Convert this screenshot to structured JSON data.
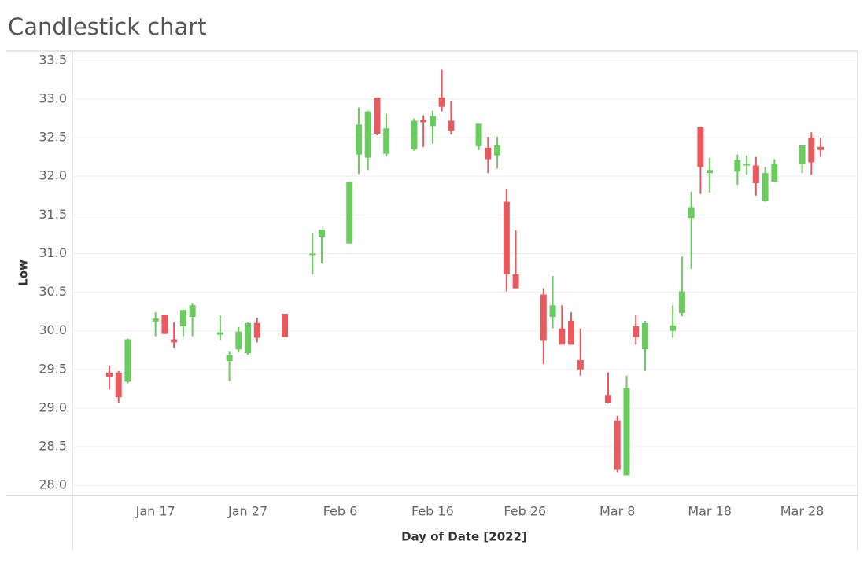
{
  "chart_data": {
    "type": "candlestick",
    "title": "Candlestick chart",
    "x_label": "Day of Date [2022]",
    "y_label": "Low",
    "dates": [
      "2022-01-12",
      "2022-01-13",
      "2022-01-14",
      "2022-01-17",
      "2022-01-18",
      "2022-01-19",
      "2022-01-20",
      "2022-01-21",
      "2022-01-24",
      "2022-01-25",
      "2022-01-26",
      "2022-01-27",
      "2022-01-28",
      "2022-01-31",
      "2022-02-03",
      "2022-02-04",
      "2022-02-07",
      "2022-02-08",
      "2022-02-09",
      "2022-02-10",
      "2022-02-11",
      "2022-02-14",
      "2022-02-15",
      "2022-02-16",
      "2022-02-17",
      "2022-02-18",
      "2022-02-21",
      "2022-02-22",
      "2022-02-23",
      "2022-02-24",
      "2022-02-25",
      "2022-02-28",
      "2022-03-01",
      "2022-03-02",
      "2022-03-03",
      "2022-03-04",
      "2022-03-07",
      "2022-03-08",
      "2022-03-09",
      "2022-03-10",
      "2022-03-11",
      "2022-03-14",
      "2022-03-15",
      "2022-03-16",
      "2022-03-17",
      "2022-03-18",
      "2022-03-21",
      "2022-03-22",
      "2022-03-23",
      "2022-03-24",
      "2022-03-25",
      "2022-03-28",
      "2022-03-29",
      "2022-03-30"
    ],
    "open": [
      29.46,
      29.46,
      29.34,
      30.12,
      30.21,
      29.89,
      30.06,
      30.18,
      29.95,
      29.61,
      29.76,
      29.71,
      30.1,
      30.22,
      30.98,
      31.21,
      31.13,
      32.28,
      32.24,
      33.02,
      32.29,
      32.35,
      32.73,
      32.65,
      33.02,
      32.72,
      32.39,
      32.37,
      32.27,
      31.67,
      30.73,
      30.47,
      30.18,
      30.03,
      30.13,
      29.62,
      29.17,
      28.84,
      28.13,
      30.06,
      29.76,
      30.0,
      30.23,
      31.46,
      32.64,
      32.04,
      32.06,
      32.14,
      32.14,
      31.68,
      31.93,
      32.16,
      32.5,
      32.38
    ],
    "high": [
      29.55,
      29.48,
      29.9,
      30.24,
      30.21,
      30.11,
      30.27,
      30.36,
      30.2,
      29.73,
      30.05,
      30.11,
      30.17,
      30.22,
      31.27,
      31.31,
      31.93,
      32.89,
      32.85,
      33.02,
      32.81,
      32.75,
      32.79,
      32.85,
      33.38,
      32.98,
      32.68,
      32.51,
      32.51,
      31.84,
      31.3,
      30.55,
      30.71,
      30.33,
      30.24,
      30.03,
      29.46,
      28.9,
      29.42,
      30.21,
      30.13,
      30.33,
      30.96,
      31.8,
      32.64,
      32.24,
      32.28,
      32.27,
      32.25,
      32.12,
      32.22,
      32.4,
      32.57,
      32.5
    ],
    "low": [
      29.24,
      29.07,
      29.32,
      29.93,
      29.96,
      29.78,
      29.93,
      29.93,
      29.88,
      29.35,
      29.72,
      29.69,
      29.85,
      29.92,
      30.73,
      30.87,
      31.13,
      32.03,
      32.08,
      32.53,
      32.26,
      32.33,
      32.38,
      32.42,
      32.84,
      32.54,
      32.34,
      32.04,
      32.1,
      30.51,
      30.55,
      29.57,
      30.03,
      29.82,
      29.82,
      29.42,
      29.06,
      28.17,
      28.13,
      29.82,
      29.48,
      29.91,
      30.19,
      30.8,
      31.77,
      31.79,
      31.89,
      32.02,
      31.75,
      31.67,
      31.93,
      32.04,
      32.02,
      32.25
    ],
    "close": [
      29.4,
      29.14,
      29.89,
      30.16,
      29.96,
      29.85,
      30.27,
      30.33,
      29.98,
      29.69,
      29.99,
      30.1,
      29.91,
      29.92,
      31.0,
      31.31,
      31.93,
      32.67,
      32.84,
      32.55,
      32.62,
      32.72,
      32.7,
      32.78,
      32.9,
      32.59,
      32.68,
      32.22,
      32.4,
      30.73,
      30.55,
      29.87,
      30.33,
      29.82,
      29.82,
      29.5,
      29.07,
      28.2,
      29.26,
      29.92,
      30.1,
      30.07,
      30.51,
      31.6,
      32.12,
      32.08,
      32.21,
      32.16,
      31.91,
      32.04,
      32.16,
      32.4,
      32.18,
      32.34
    ],
    "up_color": "#6acb5e",
    "down_color": "#e85a5e",
    "xlim": [
      "2022-01-08",
      "2022-04-03"
    ],
    "xticks": [
      {
        "value": "2022-01-17",
        "label": "Jan 17"
      },
      {
        "value": "2022-01-27",
        "label": "Jan 27"
      },
      {
        "value": "2022-02-06",
        "label": "Feb 6"
      },
      {
        "value": "2022-02-16",
        "label": "Feb 16"
      },
      {
        "value": "2022-02-26",
        "label": "Feb 26"
      },
      {
        "value": "2022-03-08",
        "label": "Mar 8"
      },
      {
        "value": "2022-03-18",
        "label": "Mar 18"
      },
      {
        "value": "2022-03-28",
        "label": "Mar 28"
      }
    ],
    "ylim": [
      27.87,
      33.62
    ],
    "yticks": [
      {
        "value": 28,
        "label": "28.0"
      },
      28.5,
      {
        "value": 29,
        "label": "29.0"
      },
      29.5,
      {
        "value": 30,
        "label": "30.0"
      },
      30.5,
      {
        "value": 31,
        "label": "31.0"
      },
      31.5,
      {
        "value": 32,
        "label": "32.0"
      },
      32.5,
      {
        "value": 33,
        "label": "33.0"
      },
      33.5
    ],
    "grid": true
  }
}
